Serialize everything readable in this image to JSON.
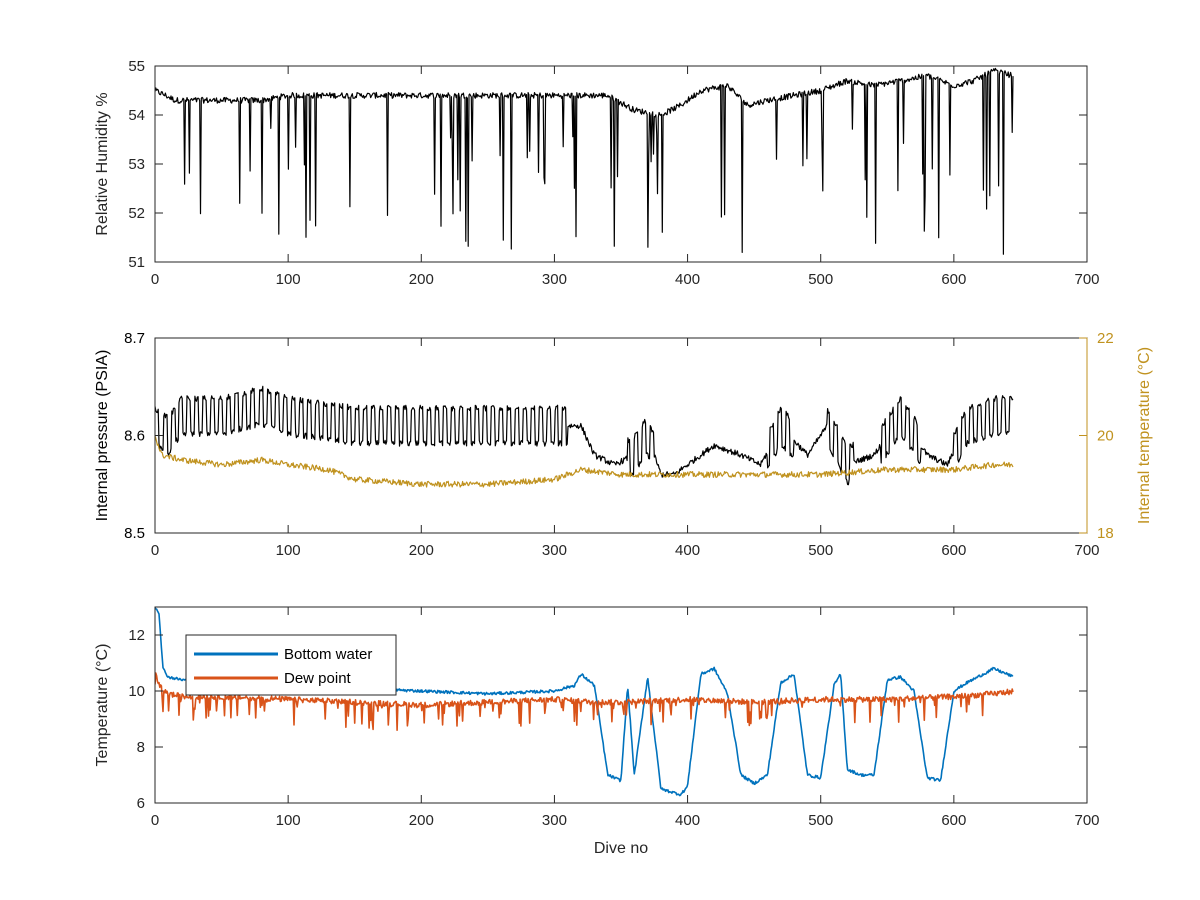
{
  "chart_data": [
    {
      "type": "line",
      "xlabel": "",
      "ylabel": "Relative Humidity %",
      "xlim": [
        0,
        700
      ],
      "ylim": [
        51,
        55
      ],
      "xticks": [
        0,
        100,
        200,
        300,
        400,
        500,
        600,
        700
      ],
      "yticks": [
        51,
        52,
        53,
        54,
        55
      ],
      "grid": false,
      "series": [
        {
          "color": "#000000",
          "x": [
            0,
            8,
            15,
            25,
            40,
            60,
            80,
            100,
            120,
            150,
            170,
            200,
            230,
            260,
            290,
            300,
            320,
            340,
            360,
            380,
            395,
            410,
            430,
            445,
            460,
            480,
            500,
            520,
            540,
            560,
            580,
            600,
            615,
            630,
            645
          ],
          "y": [
            54.5,
            54.4,
            54.3,
            54.3,
            54.3,
            54.3,
            54.3,
            54.4,
            54.4,
            54.4,
            54.4,
            54.4,
            54.4,
            54.4,
            54.4,
            54.4,
            54.4,
            54.4,
            54.1,
            54.0,
            54.2,
            54.5,
            54.6,
            54.2,
            54.3,
            54.4,
            54.5,
            54.7,
            54.6,
            54.7,
            54.8,
            54.6,
            54.7,
            54.9,
            54.8
          ]
        }
      ]
    },
    {
      "type": "line",
      "xlabel": "",
      "ylabel": "Internal pressure (PSIA)",
      "y2label": "Internal temperature (°C)",
      "xlim": [
        0,
        700
      ],
      "ylim": [
        8.5,
        8.7
      ],
      "y2lim": [
        18,
        22
      ],
      "xticks": [
        0,
        100,
        200,
        300,
        400,
        500,
        600,
        700
      ],
      "yticks": [
        8.5,
        8.6,
        8.7
      ],
      "yticklabels": [
        "8.5",
        "8.6",
        "8.7"
      ],
      "y2ticks": [
        18,
        20,
        22
      ],
      "grid": false,
      "series": [
        {
          "axis": "left",
          "color": "#000000",
          "x": [
            0,
            10,
            20,
            50,
            80,
            100,
            150,
            200,
            250,
            300,
            320,
            330,
            345,
            360,
            370,
            380,
            390,
            400,
            420,
            440,
            455,
            470,
            490,
            505,
            520,
            540,
            560,
            580,
            595,
            610,
            630,
            645
          ],
          "y": [
            8.61,
            8.6,
            8.62,
            8.62,
            8.63,
            8.62,
            8.61,
            8.61,
            8.61,
            8.61,
            8.61,
            8.58,
            8.57,
            8.58,
            8.6,
            8.56,
            8.56,
            8.57,
            8.59,
            8.58,
            8.57,
            8.61,
            8.58,
            8.61,
            8.57,
            8.58,
            8.62,
            8.58,
            8.57,
            8.61,
            8.62,
            8.62
          ]
        },
        {
          "axis": "right",
          "color": "#C0921F",
          "x": [
            0,
            5,
            20,
            50,
            80,
            100,
            130,
            150,
            200,
            250,
            300,
            320,
            350,
            400,
            450,
            500,
            550,
            600,
            630,
            645
          ],
          "y": [
            20.0,
            19.6,
            19.5,
            19.4,
            19.5,
            19.4,
            19.3,
            19.1,
            19.0,
            19.0,
            19.1,
            19.3,
            19.2,
            19.2,
            19.2,
            19.2,
            19.3,
            19.3,
            19.4,
            19.4
          ]
        }
      ]
    },
    {
      "type": "line",
      "xlabel": "Dive no",
      "ylabel": "Temperature (°C)",
      "xlim": [
        0,
        700
      ],
      "ylim": [
        6,
        13
      ],
      "xticks": [
        0,
        100,
        200,
        300,
        400,
        500,
        600,
        700
      ],
      "yticks": [
        6,
        8,
        10,
        12
      ],
      "grid": false,
      "legend": "top-left",
      "series": [
        {
          "name": "Bottom water",
          "color": "#0072BD",
          "x": [
            0,
            3,
            6,
            10,
            20,
            50,
            100,
            150,
            200,
            250,
            300,
            315,
            320,
            330,
            340,
            350,
            355,
            360,
            370,
            380,
            395,
            400,
            410,
            420,
            430,
            440,
            450,
            460,
            470,
            480,
            490,
            500,
            510,
            515,
            520,
            530,
            540,
            550,
            560,
            570,
            580,
            590,
            600,
            610,
            630,
            645
          ],
          "y": [
            13.0,
            12.8,
            10.8,
            10.5,
            10.4,
            10.3,
            10.2,
            10.1,
            10.0,
            9.9,
            10.0,
            10.2,
            10.6,
            10.2,
            7.0,
            6.8,
            10.2,
            7.0,
            10.5,
            6.5,
            6.3,
            6.6,
            10.6,
            10.8,
            9.9,
            7.0,
            6.7,
            7.0,
            10.3,
            10.6,
            7.0,
            6.9,
            10.2,
            10.6,
            7.2,
            7.0,
            7.0,
            10.4,
            10.5,
            10.0,
            6.9,
            6.8,
            10.0,
            10.3,
            10.8,
            10.5
          ]
        },
        {
          "name": "Dew point",
          "color": "#D95319",
          "x": [
            0,
            3,
            10,
            20,
            50,
            100,
            150,
            200,
            250,
            300,
            330,
            350,
            400,
            450,
            500,
            550,
            600,
            630,
            645
          ],
          "y": [
            10.8,
            10.2,
            9.9,
            9.8,
            9.8,
            9.7,
            9.6,
            9.5,
            9.6,
            9.7,
            9.6,
            9.6,
            9.7,
            9.6,
            9.7,
            9.7,
            9.8,
            9.9,
            10.0
          ]
        }
      ]
    }
  ]
}
